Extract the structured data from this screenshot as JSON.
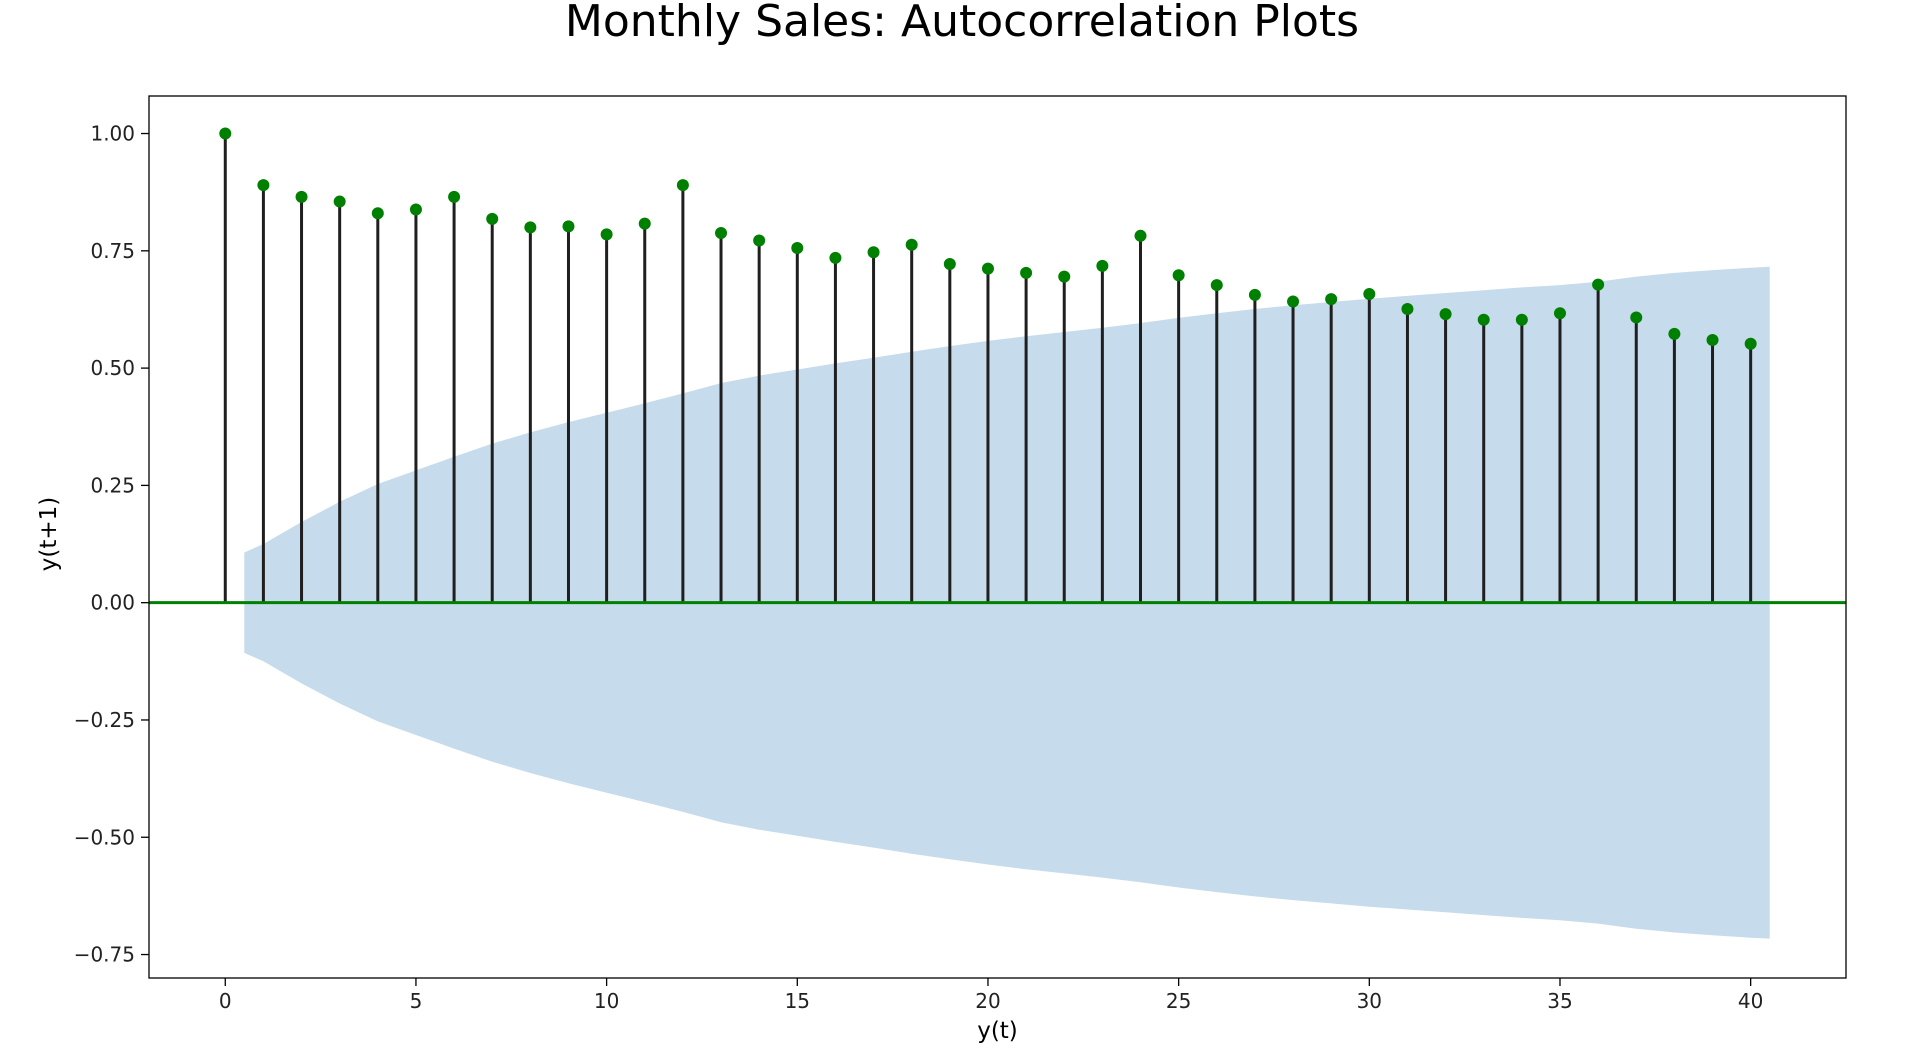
{
  "chart_data": {
    "type": "stem",
    "title": "Monthly Sales: Autocorrelation Plots",
    "xlabel": "y(t)",
    "ylabel": "y(t+1)",
    "xlim": [
      -2,
      42.5
    ],
    "ylim": [
      -0.8,
      1.08
    ],
    "x_ticks": [
      0,
      5,
      10,
      15,
      20,
      25,
      30,
      35,
      40
    ],
    "x_tick_labels": [
      "0",
      "5",
      "10",
      "15",
      "20",
      "25",
      "30",
      "35",
      "40"
    ],
    "y_ticks": [
      1.0,
      0.75,
      0.5,
      0.25,
      0.0,
      -0.25,
      -0.5,
      -0.75
    ],
    "y_tick_labels": [
      "1.00",
      "0.75",
      "0.50",
      "0.25",
      "0.00",
      "−0.25",
      "−0.50",
      "−0.75"
    ],
    "grid": false,
    "lags": [
      0,
      1,
      2,
      3,
      4,
      5,
      6,
      7,
      8,
      9,
      10,
      11,
      12,
      13,
      14,
      15,
      16,
      17,
      18,
      19,
      20,
      21,
      22,
      23,
      24,
      25,
      26,
      27,
      28,
      29,
      30,
      31,
      32,
      33,
      34,
      35,
      36,
      37,
      38,
      39,
      40
    ],
    "values": [
      1.0,
      0.89,
      0.865,
      0.855,
      0.83,
      0.838,
      0.865,
      0.818,
      0.8,
      0.802,
      0.785,
      0.808,
      0.89,
      0.788,
      0.772,
      0.756,
      0.735,
      0.747,
      0.763,
      0.722,
      0.712,
      0.703,
      0.695,
      0.718,
      0.782,
      0.698,
      0.677,
      0.656,
      0.642,
      0.647,
      0.658,
      0.626,
      0.615,
      0.603,
      0.603,
      0.617,
      0.678,
      0.608,
      0.573,
      0.56,
      0.552
    ],
    "confidence_band": {
      "x": [
        0.5,
        1,
        2,
        3,
        4,
        5,
        6,
        7,
        8,
        9,
        10,
        11,
        12,
        13,
        14,
        15,
        16,
        17,
        18,
        19,
        20,
        21,
        22,
        23,
        24,
        25,
        26,
        27,
        28,
        29,
        30,
        31,
        32,
        33,
        34,
        35,
        36,
        37,
        38,
        39,
        40,
        40.5
      ],
      "upper": [
        0.107,
        0.125,
        0.172,
        0.215,
        0.253,
        0.282,
        0.311,
        0.339,
        0.363,
        0.385,
        0.405,
        0.425,
        0.446,
        0.468,
        0.484,
        0.497,
        0.51,
        0.522,
        0.535,
        0.547,
        0.558,
        0.568,
        0.577,
        0.586,
        0.596,
        0.607,
        0.617,
        0.626,
        0.634,
        0.641,
        0.648,
        0.654,
        0.66,
        0.666,
        0.672,
        0.677,
        0.684,
        0.695,
        0.703,
        0.709,
        0.714,
        0.716
      ],
      "lower": [
        -0.107,
        -0.125,
        -0.172,
        -0.215,
        -0.253,
        -0.282,
        -0.311,
        -0.339,
        -0.363,
        -0.385,
        -0.405,
        -0.425,
        -0.446,
        -0.468,
        -0.484,
        -0.497,
        -0.51,
        -0.522,
        -0.535,
        -0.547,
        -0.558,
        -0.568,
        -0.577,
        -0.586,
        -0.596,
        -0.607,
        -0.617,
        -0.626,
        -0.634,
        -0.641,
        -0.648,
        -0.654,
        -0.66,
        -0.666,
        -0.672,
        -0.677,
        -0.684,
        -0.695,
        -0.703,
        -0.709,
        -0.714,
        -0.716
      ]
    },
    "colors": {
      "stem": "#1f1f1f",
      "marker": "#008000",
      "zero_line": "#008000",
      "band": "#c6dbeb",
      "frame": "#000000"
    }
  }
}
